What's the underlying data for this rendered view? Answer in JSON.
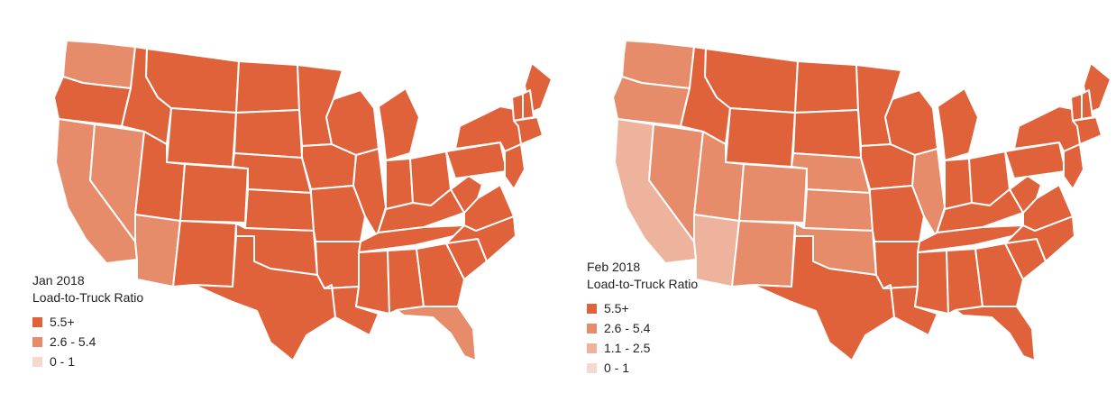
{
  "colors": {
    "c1": "#e0623a",
    "c2": "#e68c6a",
    "c3": "#eeb39c",
    "c4": "#f6d9cd",
    "border": "#ffffff"
  },
  "maps": [
    {
      "legend": {
        "title_line1": "Jan 2018",
        "title_line2": "Load-to-Truck Ratio",
        "items": [
          {
            "label": "5.5+",
            "color": "#e0623a"
          },
          {
            "label": "2.6 - 5.4",
            "color": "#e68c6a"
          },
          {
            "label": "0 - 1",
            "color": "#f6d9cd"
          }
        ]
      },
      "states": {
        "WA": "c2",
        "OR": "c1",
        "CA": "c2",
        "NV": "c2",
        "ID": "c1",
        "MT": "c1",
        "WY": "c1",
        "UT": "c1",
        "AZ": "c2",
        "CO": "c1",
        "NM": "c1",
        "ND": "c1",
        "SD": "c1",
        "NE": "c1",
        "KS": "c1",
        "OK": "c1",
        "TX": "c1",
        "MN": "c1",
        "IA": "c1",
        "MO": "c1",
        "AR": "c1",
        "LA": "c1",
        "WI": "c1",
        "IL": "c1",
        "MI": "c1",
        "IN": "c1",
        "OH": "c1",
        "KY": "c1",
        "TN": "c1",
        "MS": "c1",
        "AL": "c1",
        "GA": "c1",
        "FL": "c2",
        "SC": "c1",
        "NC": "c1",
        "VA": "c1",
        "WV": "c1",
        "PA": "c1",
        "NY": "c1",
        "ME": "c1",
        "VT": "c1",
        "NH": "c1",
        "NE_COAST": "c1",
        "MID": "c1"
      }
    },
    {
      "legend": {
        "title_line1": "Feb 2018",
        "title_line2": "Load-to-Truck Ratio",
        "items": [
          {
            "label": "5.5+",
            "color": "#e0623a"
          },
          {
            "label": "2.6 - 5.4",
            "color": "#e68c6a"
          },
          {
            "label": "1.1 - 2.5",
            "color": "#eeb39c"
          },
          {
            "label": "0 - 1",
            "color": "#f6d9cd"
          }
        ]
      },
      "states": {
        "WA": "c2",
        "OR": "c2",
        "CA": "c3",
        "NV": "c2",
        "ID": "c1",
        "MT": "c1",
        "WY": "c1",
        "UT": "c2",
        "AZ": "c3",
        "CO": "c2",
        "NM": "c2",
        "ND": "c1",
        "SD": "c1",
        "NE": "c2",
        "KS": "c2",
        "OK": "c2",
        "TX": "c1",
        "MN": "c1",
        "IA": "c1",
        "MO": "c1",
        "AR": "c1",
        "LA": "c1",
        "WI": "c1",
        "IL": "c2",
        "MI": "c1",
        "IN": "c1",
        "OH": "c1",
        "KY": "c1",
        "TN": "c1",
        "MS": "c1",
        "AL": "c1",
        "GA": "c1",
        "FL": "c1",
        "SC": "c1",
        "NC": "c1",
        "VA": "c1",
        "WV": "c1",
        "PA": "c1",
        "NY": "c1",
        "ME": "c1",
        "VT": "c1",
        "NH": "c1",
        "NE_COAST": "c1",
        "MID": "c1"
      }
    }
  ]
}
